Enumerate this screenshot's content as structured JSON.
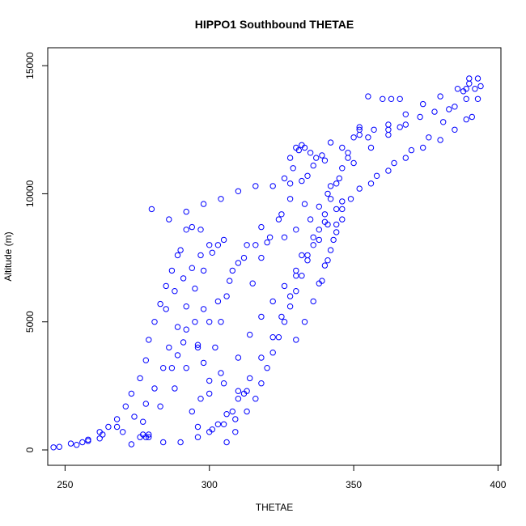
{
  "chart_data": {
    "type": "scatter",
    "title": "HIPPO1 Southbound THETAE",
    "xlabel": "THETAE",
    "ylabel": "Altitude (m)",
    "xlim": [
      244,
      401
    ],
    "ylim": [
      -600,
      15700
    ],
    "xticks": [
      "250",
      "300",
      "350",
      "400"
    ],
    "yticks": [
      "0",
      "5000",
      "10000",
      "15000"
    ],
    "marker": "open-circle",
    "grid": false,
    "legend": "none",
    "series": [
      {
        "color": "#0000ff",
        "points": [
          [
            246,
            100
          ],
          [
            248,
            120
          ],
          [
            252,
            250
          ],
          [
            256,
            300
          ],
          [
            258,
            400
          ],
          [
            262,
            700
          ],
          [
            265,
            900
          ],
          [
            268,
            1200
          ],
          [
            271,
            1700
          ],
          [
            273,
            2200
          ],
          [
            276,
            2800
          ],
          [
            278,
            3500
          ],
          [
            279,
            4300
          ],
          [
            281,
            5000
          ],
          [
            283,
            5700
          ],
          [
            285,
            6400
          ],
          [
            287,
            7000
          ],
          [
            289,
            7600
          ],
          [
            290,
            7800
          ],
          [
            292,
            8600
          ],
          [
            294,
            8700
          ],
          [
            297,
            8600
          ],
          [
            254,
            200
          ],
          [
            258,
            350
          ],
          [
            263,
            600
          ],
          [
            268,
            900
          ],
          [
            274,
            1300
          ],
          [
            278,
            1800
          ],
          [
            281,
            2400
          ],
          [
            284,
            3200
          ],
          [
            286,
            4000
          ],
          [
            289,
            4800
          ],
          [
            292,
            5600
          ],
          [
            295,
            6300
          ],
          [
            298,
            7000
          ],
          [
            301,
            7700
          ],
          [
            303,
            8000
          ],
          [
            305,
            8200
          ],
          [
            262,
            450
          ],
          [
            270,
            700
          ],
          [
            277,
            1100
          ],
          [
            283,
            1700
          ],
          [
            288,
            2400
          ],
          [
            292,
            3200
          ],
          [
            296,
            4100
          ],
          [
            300,
            5000
          ],
          [
            303,
            5800
          ],
          [
            307,
            6600
          ],
          [
            310,
            7300
          ],
          [
            313,
            8000
          ],
          [
            318,
            8700
          ],
          [
            325,
            9200
          ],
          [
            333,
            9600
          ],
          [
            342,
            10300
          ],
          [
            348,
            11400
          ],
          [
            352,
            12600
          ],
          [
            355,
            13800
          ],
          [
            273,
            220
          ],
          [
            276,
            500
          ],
          [
            279,
            500
          ],
          [
            284,
            300
          ],
          [
            290,
            300
          ],
          [
            296,
            500
          ],
          [
            301,
            800
          ],
          [
            305,
            1000
          ],
          [
            309,
            1200
          ],
          [
            313,
            1500
          ],
          [
            316,
            2000
          ],
          [
            318,
            2600
          ],
          [
            320,
            3200
          ],
          [
            322,
            3800
          ],
          [
            324,
            4400
          ],
          [
            326,
            5000
          ],
          [
            328,
            5600
          ],
          [
            330,
            6200
          ],
          [
            332,
            6800
          ],
          [
            334,
            7400
          ],
          [
            336,
            8000
          ],
          [
            338,
            8600
          ],
          [
            340,
            9200
          ],
          [
            342,
            9800
          ],
          [
            344,
            10400
          ],
          [
            346,
            11000
          ],
          [
            348,
            11600
          ],
          [
            350,
            12200
          ],
          [
            352,
            12500
          ],
          [
            357,
            12500
          ],
          [
            362,
            12500
          ],
          [
            366,
            12600
          ],
          [
            300,
            2200
          ],
          [
            305,
            2600
          ],
          [
            310,
            2300
          ],
          [
            312,
            2200
          ],
          [
            313,
            2300
          ],
          [
            309,
            700
          ],
          [
            306,
            300
          ],
          [
            308,
            1500
          ],
          [
            304,
            3000
          ],
          [
            302,
            4000
          ],
          [
            304,
            5000
          ],
          [
            306,
            6000
          ],
          [
            308,
            7000
          ],
          [
            312,
            7500
          ],
          [
            316,
            8000
          ],
          [
            320,
            8100
          ],
          [
            326,
            8300
          ],
          [
            330,
            8600
          ],
          [
            335,
            9000
          ],
          [
            338,
            9500
          ],
          [
            341,
            10000
          ],
          [
            345,
            10600
          ],
          [
            350,
            11200
          ],
          [
            356,
            11800
          ],
          [
            362,
            12300
          ],
          [
            368,
            12700
          ],
          [
            373,
            13000
          ],
          [
            378,
            13200
          ],
          [
            383,
            13300
          ],
          [
            360,
            13700
          ],
          [
            363,
            13700
          ],
          [
            366,
            13700
          ],
          [
            349,
            9800
          ],
          [
            356,
            10400
          ],
          [
            362,
            10900
          ],
          [
            368,
            11400
          ],
          [
            374,
            11800
          ],
          [
            380,
            12100
          ],
          [
            385,
            12500
          ],
          [
            389,
            12900
          ],
          [
            391,
            13000
          ],
          [
            346,
            9700
          ],
          [
            352,
            10200
          ],
          [
            358,
            10700
          ],
          [
            364,
            11200
          ],
          [
            370,
            11700
          ],
          [
            376,
            12200
          ],
          [
            381,
            12800
          ],
          [
            385,
            13400
          ],
          [
            388,
            14000
          ],
          [
            390,
            14500
          ],
          [
            393,
            14500
          ],
          [
            389,
            14100
          ],
          [
            392,
            14100
          ],
          [
            394,
            14200
          ],
          [
            389,
            13700
          ],
          [
            393,
            13700
          ],
          [
            355,
            12200
          ],
          [
            362,
            12700
          ],
          [
            368,
            13100
          ],
          [
            374,
            13500
          ],
          [
            380,
            13800
          ],
          [
            386,
            14100
          ],
          [
            390,
            14300
          ],
          [
            280,
            9400
          ],
          [
            286,
            9000
          ],
          [
            292,
            9300
          ],
          [
            298,
            9600
          ],
          [
            304,
            9800
          ],
          [
            310,
            10100
          ],
          [
            316,
            10300
          ],
          [
            322,
            10300
          ],
          [
            328,
            10400
          ],
          [
            334,
            10700
          ],
          [
            340,
            11300
          ],
          [
            346,
            11800
          ],
          [
            352,
            12300
          ],
          [
            292,
            4700
          ],
          [
            296,
            4000
          ],
          [
            298,
            3400
          ],
          [
            300,
            2700
          ],
          [
            297,
            2000
          ],
          [
            294,
            1500
          ],
          [
            296,
            900
          ],
          [
            300,
            700
          ],
          [
            303,
            1000
          ],
          [
            306,
            1400
          ],
          [
            310,
            2000
          ],
          [
            314,
            2800
          ],
          [
            318,
            3600
          ],
          [
            322,
            4400
          ],
          [
            325,
            5200
          ],
          [
            328,
            6000
          ],
          [
            330,
            6800
          ],
          [
            332,
            7600
          ],
          [
            336,
            8300
          ],
          [
            340,
            8900
          ],
          [
            344,
            9400
          ],
          [
            315,
            6500
          ],
          [
            318,
            7500
          ],
          [
            321,
            8300
          ],
          [
            324,
            9000
          ],
          [
            328,
            9800
          ],
          [
            332,
            10500
          ],
          [
            336,
            11100
          ],
          [
            339,
            11500
          ],
          [
            342,
            12000
          ],
          [
            329,
            11000
          ],
          [
            331,
            11700
          ],
          [
            333,
            11800
          ],
          [
            335,
            11600
          ],
          [
            337,
            11400
          ],
          [
            326,
            10600
          ],
          [
            328,
            11400
          ],
          [
            330,
            11800
          ],
          [
            332,
            11900
          ],
          [
            285,
            5500
          ],
          [
            288,
            6200
          ],
          [
            291,
            6700
          ],
          [
            294,
            7100
          ],
          [
            297,
            7600
          ],
          [
            300,
            8000
          ],
          [
            287,
            3200
          ],
          [
            289,
            3700
          ],
          [
            291,
            4200
          ],
          [
            295,
            5000
          ],
          [
            298,
            5500
          ],
          [
            310,
            3600
          ],
          [
            314,
            4500
          ],
          [
            318,
            5200
          ],
          [
            322,
            5800
          ],
          [
            326,
            6400
          ],
          [
            330,
            7000
          ],
          [
            334,
            7600
          ],
          [
            338,
            8200
          ],
          [
            341,
            8800
          ],
          [
            330,
            4300
          ],
          [
            333,
            5000
          ],
          [
            336,
            5800
          ],
          [
            339,
            6600
          ],
          [
            341,
            7400
          ],
          [
            343,
            8200
          ],
          [
            344,
            8800
          ],
          [
            346,
            9400
          ],
          [
            338,
            6500
          ],
          [
            340,
            7200
          ],
          [
            342,
            7800
          ],
          [
            344,
            8500
          ],
          [
            346,
            9000
          ],
          [
            277,
            600
          ],
          [
            278,
            500
          ],
          [
            279,
            600
          ]
        ]
      }
    ]
  }
}
